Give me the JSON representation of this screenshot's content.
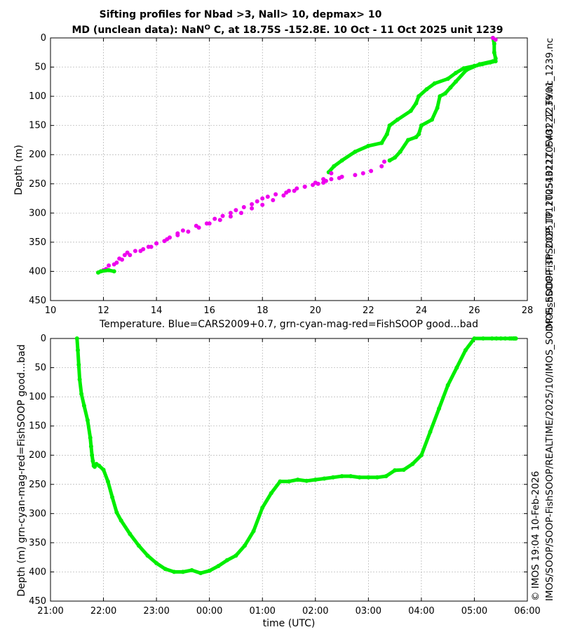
{
  "figure": {
    "title_line1": "Sifting profiles for Nbad >3, Nall> 10, depmax> 10",
    "title_line2_prefix": "MD (unclean data): NaN",
    "title_line2_sup": "O",
    "title_line2_suffix": " C, at 18.75S -152.8E. 10 Oct - 11 Oct 2025 unit 1239",
    "side_text_right": "IMOS_SOOP-FishSOOP_TP_20251011T054322Z_FV01_1239.nc",
    "side_text_bottom": "© IMOS 19:04 10-Feb-2026",
    "side_text_bottom2": "IMOS/SOOP/SOOP-FishSOOP/REALTIME/2025/10/IMOS_SOOP-FishSOOP_TP_20251011T054322Z_FV01_1239.nc"
  },
  "colors": {
    "good": "#00ee00",
    "magenta": "#ee00ee",
    "grid": "#b0b0b0"
  },
  "chart_data": [
    {
      "type": "scatter",
      "title": "",
      "xlabel": "Temperature. Blue=CARS2009+0.7, grn-cyan-mag-red=FishSOOP good...bad",
      "ylabel": "Depth (m)",
      "xlim": [
        10,
        28
      ],
      "ylim": [
        450,
        0
      ],
      "xticks": [
        "10",
        "12",
        "14",
        "16",
        "18",
        "20",
        "22",
        "24",
        "26",
        "28"
      ],
      "yticks": [
        "0",
        "50",
        "100",
        "150",
        "200",
        "250",
        "300",
        "350",
        "400",
        "450"
      ],
      "grid": true,
      "series": [
        {
          "color": "green",
          "x": [
            26.7,
            26.75,
            26.75,
            26.8,
            26.8,
            26.6,
            26.3,
            26.0,
            25.6,
            25.3,
            25.0,
            24.5,
            24.2,
            23.9,
            23.8,
            23.6,
            23.1,
            22.8,
            22.7,
            22.5,
            22.0,
            21.5,
            21.0,
            20.7,
            20.5
          ],
          "y": [
            0,
            10,
            25,
            35,
            40,
            42,
            45,
            48,
            52,
            60,
            70,
            78,
            88,
            100,
            112,
            125,
            140,
            150,
            165,
            180,
            185,
            195,
            210,
            220,
            230
          ]
        },
        {
          "color": "green",
          "x": [
            26.7,
            26.2,
            25.7,
            25.3,
            25.1,
            24.9,
            24.7,
            24.6,
            24.4,
            24.0,
            23.9,
            23.8,
            23.5,
            23.2,
            23.0,
            22.8
          ],
          "y": [
            40,
            45,
            55,
            75,
            85,
            95,
            100,
            120,
            140,
            150,
            165,
            170,
            175,
            195,
            205,
            210
          ]
        },
        {
          "color": "magenta",
          "x": [
            26.7,
            26.8,
            22.6,
            22.5,
            22.1,
            21.8,
            21.5,
            21.0,
            20.9,
            20.6,
            20.4,
            20.3,
            20.1,
            19.9,
            19.6,
            19.3,
            19.0,
            18.9,
            18.5,
            18.2,
            18.0,
            17.8,
            17.6,
            17.3,
            17.0,
            16.8,
            16.5,
            16.2,
            15.9,
            15.5,
            15.0,
            14.8,
            14.5,
            14.3,
            14.0,
            13.8,
            13.5,
            13.2,
            12.9,
            12.8,
            12.6,
            12.5,
            12.2,
            12.0
          ],
          "y": [
            0,
            3,
            212,
            220,
            228,
            232,
            235,
            238,
            240,
            242,
            245,
            248,
            250,
            252,
            255,
            258,
            262,
            265,
            268,
            272,
            275,
            280,
            285,
            290,
            295,
            300,
            305,
            310,
            318,
            322,
            330,
            335,
            342,
            348,
            352,
            358,
            362,
            365,
            368,
            372,
            378,
            385,
            390,
            398
          ]
        },
        {
          "color": "magenta",
          "x": [
            20.6,
            20.3,
            20.0,
            19.6,
            19.2,
            18.8,
            18.4,
            18.0,
            17.6,
            17.2,
            16.8,
            16.4,
            16.0,
            15.6,
            15.2,
            14.8,
            14.4,
            14.0,
            13.7,
            13.4,
            13.0,
            12.7,
            12.4,
            12.1
          ],
          "y": [
            232,
            242,
            248,
            255,
            262,
            270,
            278,
            286,
            292,
            300,
            306,
            312,
            318,
            325,
            332,
            338,
            345,
            352,
            358,
            365,
            372,
            380,
            388,
            396
          ]
        },
        {
          "color": "green",
          "x": [
            11.8,
            11.9,
            12.2,
            12.4
          ],
          "y": [
            402,
            400,
            398,
            400
          ]
        }
      ]
    },
    {
      "type": "scatter",
      "title": "",
      "xlabel": "time (UTC)",
      "ylabel": "Depth (m) grn-cyan-mag-red=FishSOOP good...bad",
      "xlim": [
        0,
        540
      ],
      "ylim": [
        450,
        0
      ],
      "xticks": [
        "21:00",
        "22:00",
        "23:00",
        "00:00",
        "01:00",
        "02:00",
        "03:00",
        "04:00",
        "05:00",
        "06:00"
      ],
      "yticks": [
        "0",
        "50",
        "100",
        "150",
        "200",
        "250",
        "300",
        "350",
        "400",
        "450"
      ],
      "grid": true,
      "series": [
        {
          "color": "green",
          "x": [
            30,
            31,
            32,
            33,
            35,
            38,
            42,
            45,
            46,
            47,
            48,
            49,
            50,
            52,
            55,
            60,
            65,
            70,
            75,
            80,
            90,
            100,
            110,
            120,
            130,
            140,
            150,
            160,
            170,
            180,
            190,
            200,
            210,
            220,
            230,
            240,
            250,
            260,
            270,
            280,
            290,
            300,
            310,
            320,
            330,
            340,
            350,
            360,
            370,
            380,
            390,
            400,
            410,
            420,
            430,
            440,
            450,
            460,
            470,
            480,
            490,
            500,
            505,
            510,
            515,
            520,
            522,
            524,
            525,
            526,
            527
          ],
          "y": [
            0,
            20,
            45,
            70,
            95,
            115,
            140,
            170,
            185,
            200,
            210,
            218,
            220,
            215,
            218,
            225,
            245,
            272,
            298,
            312,
            335,
            355,
            372,
            385,
            395,
            400,
            400,
            397,
            402,
            398,
            390,
            380,
            372,
            355,
            330,
            290,
            265,
            245,
            245,
            242,
            244,
            242,
            240,
            238,
            236,
            236,
            238,
            238,
            238,
            236,
            226,
            225,
            215,
            200,
            160,
            120,
            80,
            50,
            20,
            0,
            0,
            0,
            0,
            0,
            0,
            0,
            0,
            0,
            0,
            0,
            0
          ]
        }
      ]
    }
  ]
}
